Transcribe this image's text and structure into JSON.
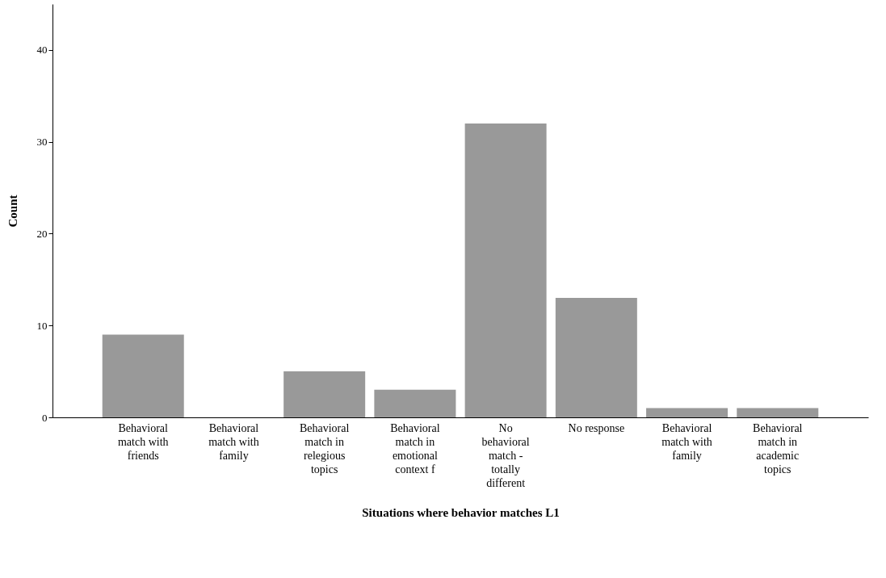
{
  "chart_data": {
    "type": "bar",
    "xlabel": "Situations where behavior matches L1",
    "ylabel": "Count",
    "categories": [
      "Behavioral match with friends",
      "Behavioral match with family",
      "Behavioral match in relegious topics",
      "Behavioral match in emotional context f",
      "No behavioral match - totally different",
      "No response",
      "Behavioral match with family",
      "Behavioral match in academic topics"
    ],
    "values": [
      9,
      0,
      5,
      3,
      32,
      13,
      1,
      1
    ],
    "color": "#999999",
    "ylim": [
      0,
      45
    ],
    "yticks": [
      0,
      10,
      20,
      30,
      40
    ],
    "grid": false
  }
}
